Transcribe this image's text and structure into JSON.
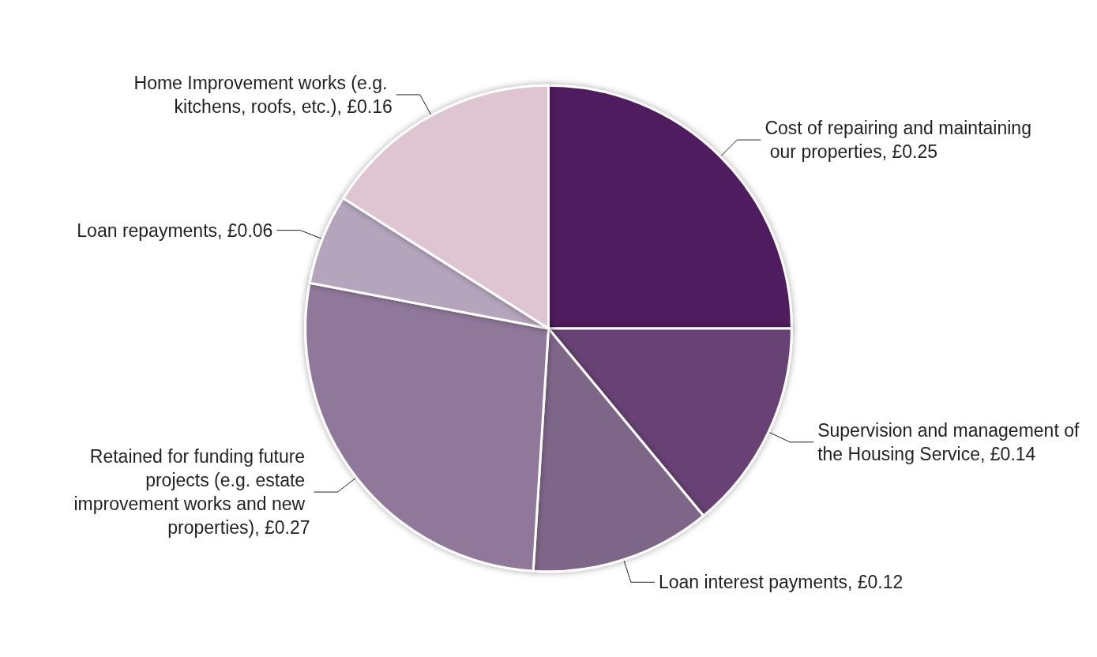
{
  "chart_data": {
    "type": "pie",
    "categories": [
      "Cost of repairing and maintaining our properties",
      "Supervision and management of the Housing Service",
      "Loan interest payments",
      "Retained for funding future projects (e.g. estate improvement works and new properties)",
      "Loan repayments",
      "Home Improvement works (e.g. kitchens, roofs, etc.)"
    ],
    "values": [
      0.25,
      0.14,
      0.12,
      0.27,
      0.06,
      0.16
    ],
    "value_labels": [
      "£0.25",
      "£0.14",
      "£0.12",
      "£0.27",
      "£0.06",
      "£0.16"
    ],
    "colors": [
      "#4f1f5e",
      "#684274",
      "#7e6689",
      "#90789a",
      "#b4a5bd",
      "#dfc5d1"
    ],
    "legend": false
  }
}
